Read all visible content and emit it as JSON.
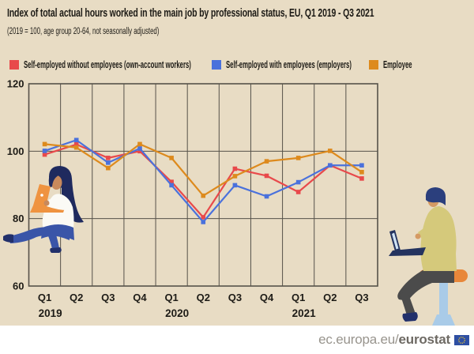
{
  "header": {
    "title": "Index of total actual hours worked in the main job by professional status, EU, Q1 2019 - Q3 2021",
    "subtitle": "(2019 = 100, age group 20-64, not seasonally adjusted)"
  },
  "legend": [
    {
      "label": "Self-employed without employees (own-account workers)",
      "color": "#e8494b"
    },
    {
      "label": "Self-employed with employees (employers)",
      "color": "#4a71dc"
    },
    {
      "label": "Employee",
      "color": "#dd8a1d"
    }
  ],
  "chart_data": {
    "type": "line",
    "title": "Index of total actual hours worked in the main job by professional status, EU, Q1 2019 - Q3 2021",
    "subtitle": "(2019 = 100, age group 20-64, not seasonally adjusted)",
    "categories": [
      "Q1",
      "Q2",
      "Q3",
      "Q4",
      "Q1",
      "Q2",
      "Q3",
      "Q4",
      "Q1",
      "Q2",
      "Q3"
    ],
    "year_labels": [
      {
        "label": "2019",
        "start_index": 0
      },
      {
        "label": "2020",
        "start_index": 4
      },
      {
        "label": "2021",
        "start_index": 8
      }
    ],
    "series": [
      {
        "name": "Self-employed without employees (own-account workers)",
        "color": "#e8494b",
        "values": [
          99.0,
          102.0,
          98.0,
          100.0,
          90.9,
          80.4,
          94.8,
          92.7,
          87.9,
          95.8,
          91.9
        ]
      },
      {
        "name": "Self-employed with employees (employers)",
        "color": "#4a71dc",
        "values": [
          100.1,
          103.3,
          96.6,
          100.8,
          89.9,
          79.0,
          89.9,
          86.6,
          90.8,
          95.8,
          95.8
        ]
      },
      {
        "name": "Employee",
        "color": "#dd8a1d",
        "values": [
          102.1,
          101.1,
          95.0,
          102.1,
          98.0,
          86.8,
          92.6,
          97.0,
          98.0,
          100.1,
          93.8
        ]
      }
    ],
    "ylim": [
      60,
      120
    ],
    "yticks": [
      120,
      100,
      80,
      60
    ],
    "grid": true,
    "legend_position": "top",
    "marker": "square"
  },
  "footer": {
    "url_regular": "ec.europa.eu/",
    "url_bold": "eurostat",
    "logo": "eu-flag"
  },
  "palette": {
    "background": "#e8dcc4",
    "grid": "#56524a",
    "text": "#1d1b16",
    "footer_background": "#ffffff",
    "footer_text": "#98948d",
    "footer_text_bold": "#6e6a64",
    "eu_flag_blue": "#2e4fa3",
    "eu_flag_stars": "#f3cb2e"
  },
  "illustrations": [
    "woman-sitting-with-laptop",
    "man-on-stool-with-laptop"
  ]
}
